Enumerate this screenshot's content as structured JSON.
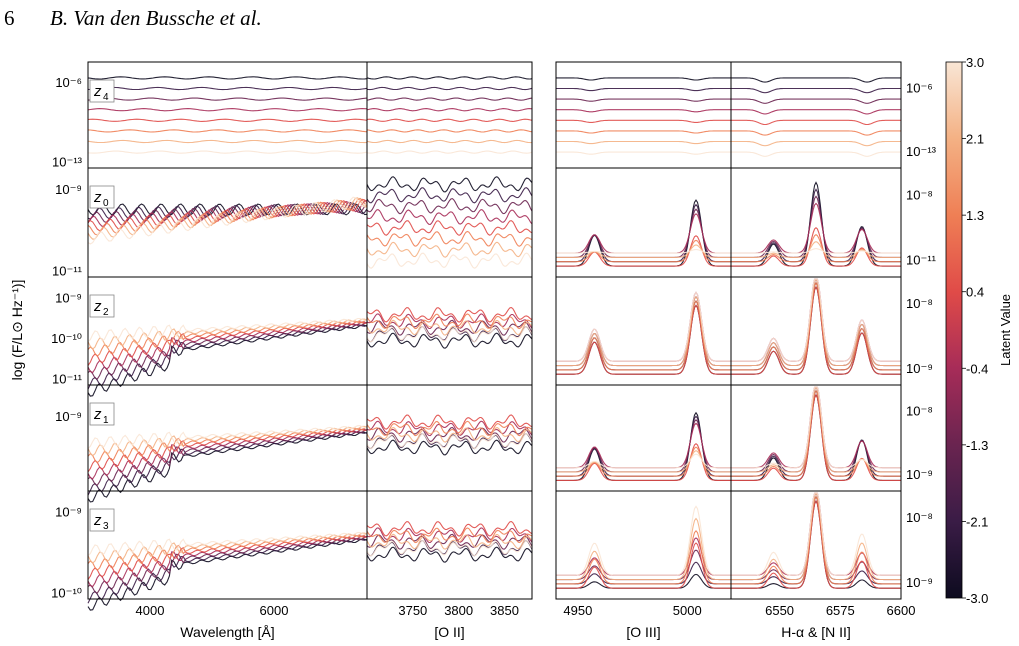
{
  "page": {
    "number": "6",
    "running_title": "B. Van den Bussche et al."
  },
  "chart_data": {
    "type": "line",
    "description_labels": {
      "ylabel": "log (F/L⊙ Hz⁻¹)]",
      "colorbar_label": "Latent Value"
    },
    "colorbar": {
      "ticks": [
        "3.0",
        "2.1",
        "1.3",
        "0.4",
        "-0.4",
        "-1.3",
        "-2.1",
        "-3.0"
      ],
      "range": [
        -3.0,
        3.0
      ],
      "colormap": "rocket",
      "colors": [
        "#0d0b1f",
        "#3a1c46",
        "#6a2450",
        "#a72c58",
        "#e04b48",
        "#ef7f55",
        "#f4b184",
        "#f9e6d5"
      ]
    },
    "columns": [
      {
        "xlabel": "Wavelength [Å]",
        "x_ticks": [
          "4000",
          "6000"
        ],
        "x_tick_values": [
          4000,
          6000
        ],
        "xlim": [
          3000,
          7500
        ]
      },
      {
        "xlabel": "[O II]",
        "x_ticks": [
          "3750",
          "3800",
          "3850"
        ],
        "x_tick_values": [
          3750,
          3800,
          3850
        ],
        "xlim": [
          3700,
          3880
        ]
      },
      {
        "xlabel": "[O III]",
        "x_ticks": [
          "4950",
          "5000"
        ],
        "x_tick_values": [
          4950,
          5000
        ],
        "xlim": [
          4940,
          5020
        ]
      },
      {
        "xlabel": "H-α & [N II]",
        "x_ticks": [
          "6550",
          "6575",
          "6600"
        ],
        "x_tick_values": [
          6550,
          6575,
          6600
        ],
        "xlim": [
          6530,
          6600
        ]
      }
    ],
    "rows": [
      {
        "latent": "z4",
        "label_main": "z",
        "label_sub": "4",
        "left_ticks": [
          "10⁻⁶",
          "10⁻¹³"
        ],
        "right_ticks": [
          "10⁻⁶",
          "10⁻¹³"
        ]
      },
      {
        "latent": "z0",
        "label_main": "z",
        "label_sub": "0",
        "left_ticks": [
          "10⁻⁹",
          "10⁻¹¹"
        ],
        "right_ticks": [
          "10⁻⁸",
          "10⁻¹¹"
        ]
      },
      {
        "latent": "z2",
        "label_main": "z",
        "label_sub": "2",
        "left_ticks": [
          "10⁻⁹",
          "10⁻¹⁰",
          "10⁻¹¹"
        ],
        "right_ticks": [
          "10⁻⁸",
          "10⁻⁹"
        ]
      },
      {
        "latent": "z1",
        "label_main": "z",
        "label_sub": "1",
        "left_ticks": [
          "10⁻⁹"
        ],
        "right_ticks": [
          "10⁻⁸",
          "10⁻⁹"
        ]
      },
      {
        "latent": "z3",
        "label_main": "z",
        "label_sub": "3",
        "left_ticks": [
          "10⁻⁹",
          "10⁻¹⁰"
        ],
        "right_ticks": [
          "10⁻⁸",
          "10⁻⁹"
        ]
      }
    ],
    "series_latent_values": [
      -3.0,
      -2.1,
      -1.3,
      -0.4,
      0.4,
      1.3,
      2.1,
      3.0
    ]
  }
}
